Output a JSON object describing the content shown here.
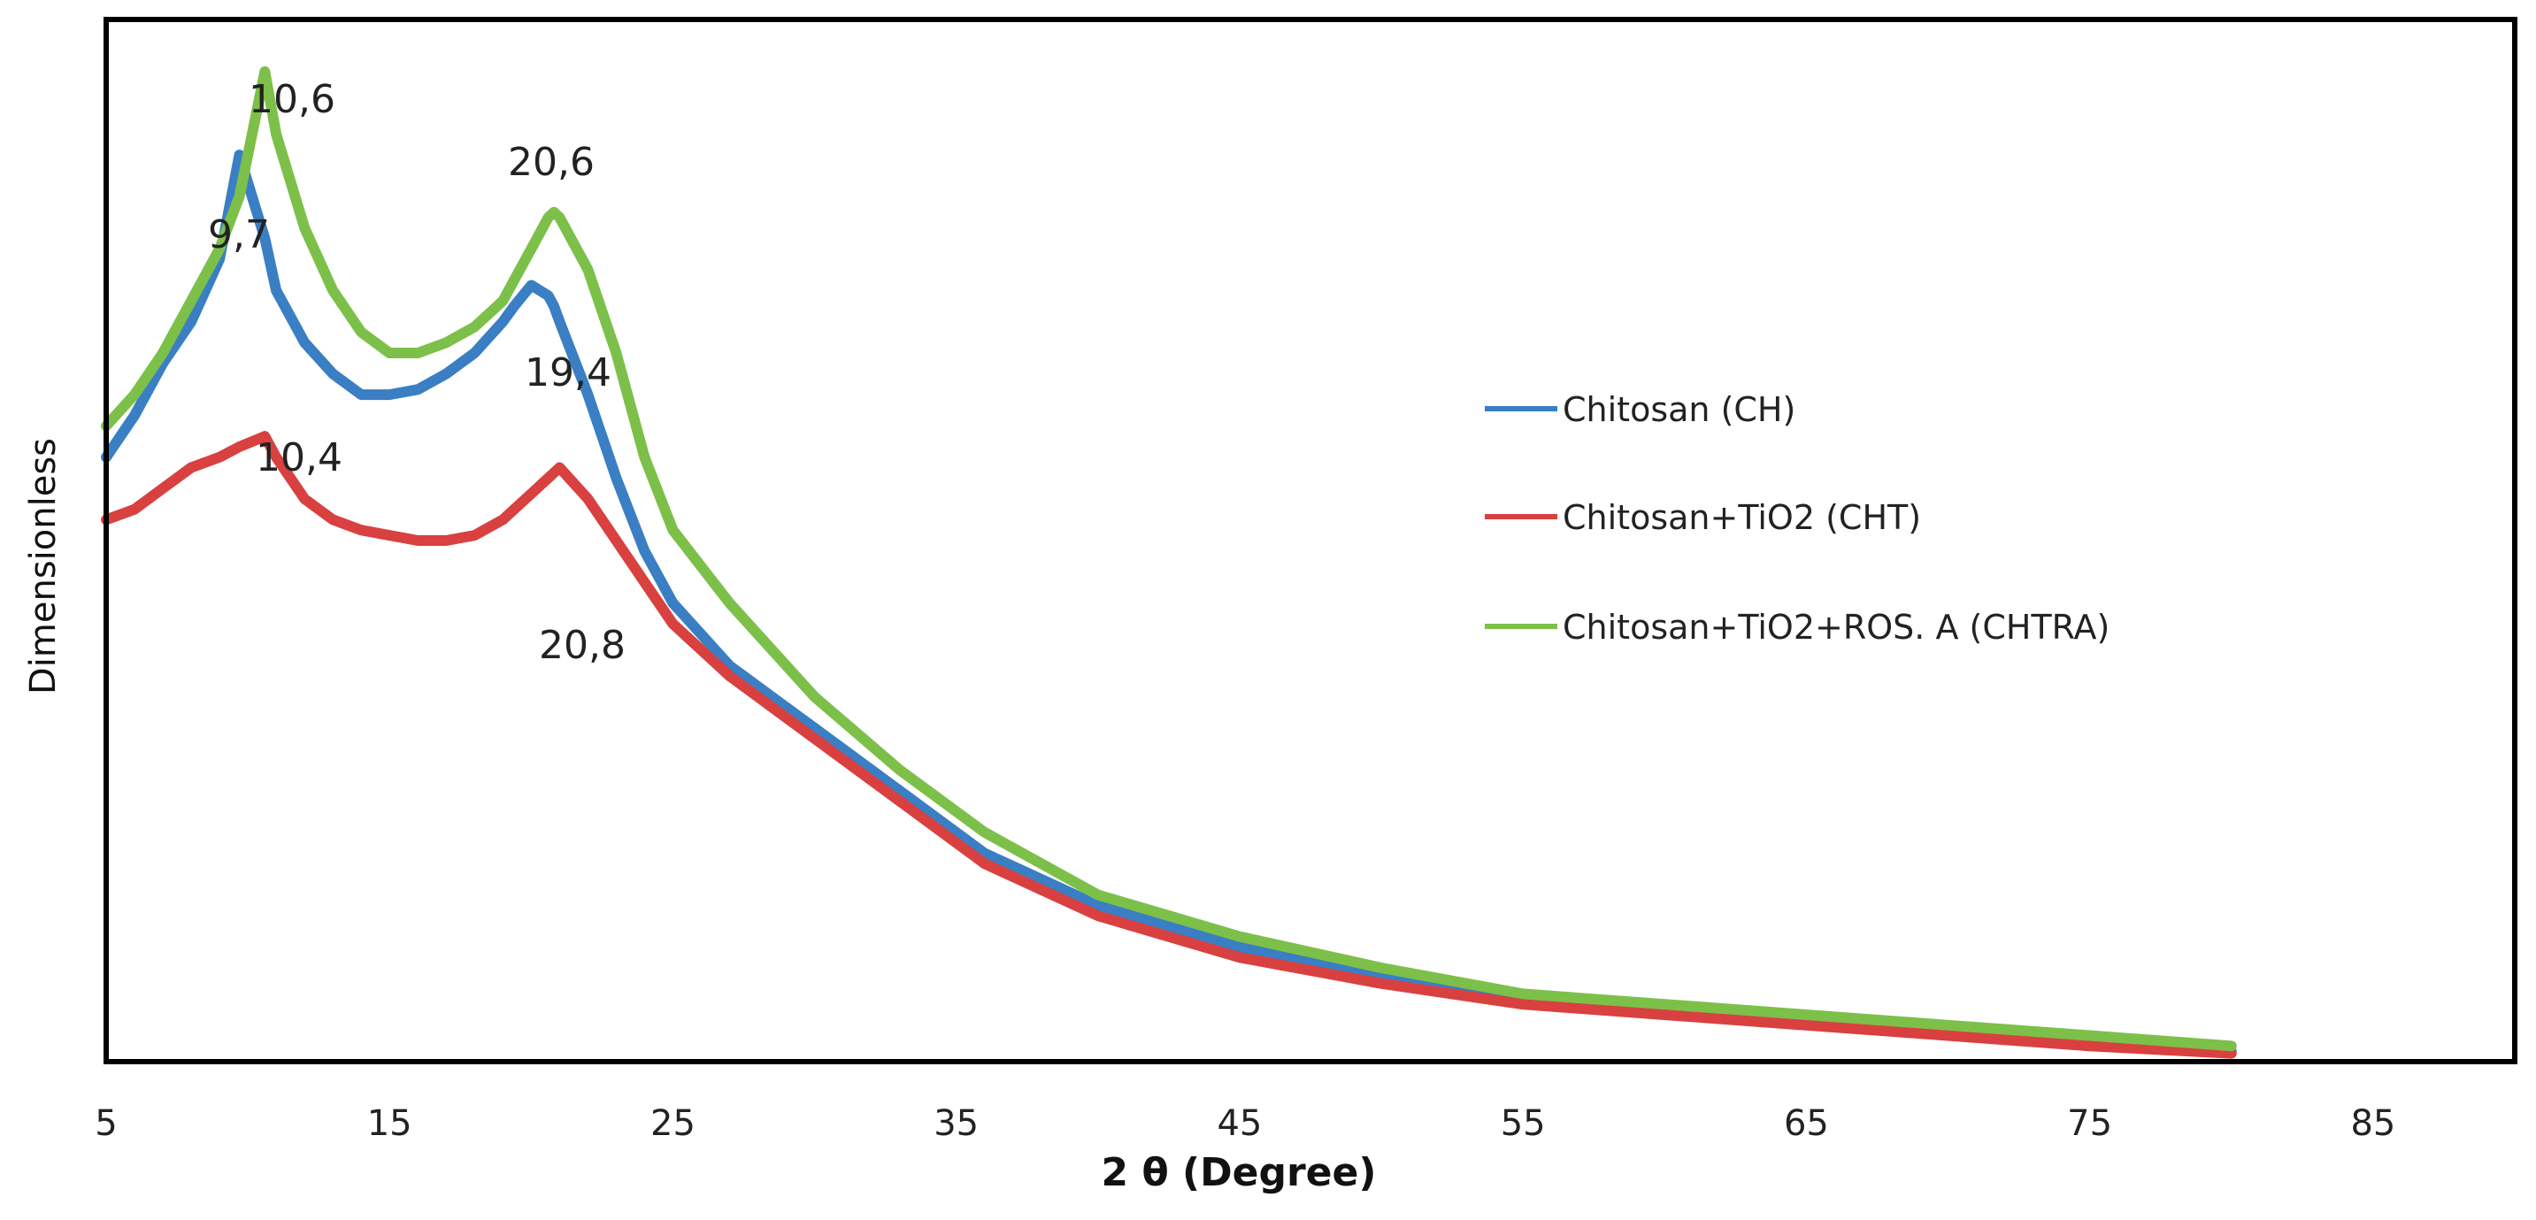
{
  "chart_data": {
    "type": "line",
    "title": "",
    "xlabel": "2 θ (Degree)",
    "ylabel": "Dimensionless",
    "xlim": [
      5,
      90
    ],
    "ylim": [
      0,
      100
    ],
    "xticks": [
      5,
      15,
      25,
      35,
      45,
      55,
      65,
      75,
      85
    ],
    "x": [
      5,
      6,
      7,
      8,
      9,
      9.7,
      10.6,
      11,
      12,
      13,
      14,
      15,
      16,
      17,
      18,
      19,
      19.4,
      20,
      20.6,
      20.8,
      21,
      22,
      23,
      24,
      25,
      27,
      30,
      33,
      36,
      40,
      45,
      50,
      55,
      60,
      65,
      70,
      75,
      80
    ],
    "series": [
      {
        "name": "Chitosan  (CH)",
        "color": "#3a7fc4",
        "values": [
          58,
          62,
          67,
          71,
          77,
          87,
          79,
          74,
          69,
          66,
          64,
          64,
          64.5,
          66,
          68,
          71,
          72.5,
          74.5,
          73.5,
          72.5,
          71,
          64,
          56,
          49,
          44,
          38,
          32,
          26,
          20,
          15,
          11,
          8,
          6,
          5,
          4,
          3,
          2,
          1
        ]
      },
      {
        "name": "Chitosan+TiO2  (CHT)",
        "color": "#d94040",
        "values": [
          52,
          53,
          55,
          57,
          58,
          59,
          60,
          58,
          54,
          52,
          51,
          50.5,
          50,
          50,
          50.5,
          52,
          53,
          54.5,
          56,
          56.5,
          57,
          54,
          50,
          46,
          42,
          37,
          31,
          25,
          19,
          14,
          10,
          7.5,
          5.5,
          4.5,
          3.5,
          2.5,
          1.5,
          0.8
        ]
      },
      {
        "name": "Chitosan+TiO2+ROS. A (CHTRA)",
        "color": "#7cc04a",
        "values": [
          61,
          64,
          68,
          73,
          78,
          83,
          95,
          89,
          80,
          74,
          70,
          68,
          68,
          69,
          70.5,
          73,
          75,
          78,
          81,
          81.5,
          81,
          76,
          68,
          58,
          51,
          44,
          35,
          28,
          22,
          16,
          12,
          9,
          6.5,
          5.5,
          4.5,
          3.5,
          2.5,
          1.5
        ]
      }
    ],
    "annotations": [
      "10,6",
      "9,7",
      "20,6",
      "19,4",
      "10,4",
      "20,8"
    ],
    "legend_position": "right"
  }
}
